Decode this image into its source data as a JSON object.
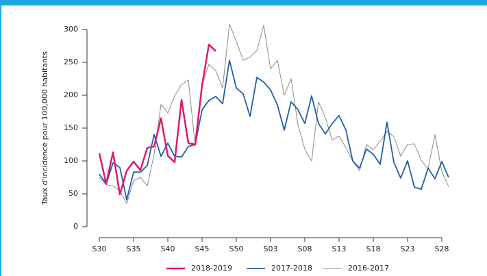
{
  "chart_data": {
    "type": "line",
    "y_label": "Taux d'incidence pour 100,000 habitants",
    "categories": [
      "S30",
      null,
      null,
      null,
      null,
      "S35",
      null,
      null,
      null,
      null,
      "S40",
      null,
      null,
      null,
      null,
      "S45",
      null,
      null,
      null,
      null,
      "S50",
      null,
      null,
      null,
      null,
      "S03",
      null,
      null,
      null,
      null,
      "S08",
      null,
      null,
      null,
      null,
      "S13",
      null,
      null,
      null,
      null,
      "S18",
      null,
      null,
      null,
      null,
      "S23",
      null,
      null,
      null,
      null,
      "S28",
      null
    ],
    "series": [
      {
        "name": "2018-2019",
        "color": "#e0186c",
        "width": 2.5,
        "values": [
          112,
          65,
          113,
          49,
          85,
          99,
          86,
          120,
          122,
          165,
          108,
          98,
          193,
          127,
          125,
          215,
          277,
          267,
          null,
          null,
          null,
          null,
          null,
          null,
          null,
          null,
          null,
          null,
          null,
          null,
          null,
          null,
          null,
          null,
          null,
          null,
          null,
          null,
          null,
          null,
          null,
          null,
          null,
          null,
          null,
          null,
          null,
          null,
          null,
          null,
          null,
          null
        ]
      },
      {
        "name": "2017-2018",
        "color": "#1f5fa8",
        "width": 1.8,
        "values": [
          80,
          65,
          97,
          90,
          41,
          83,
          83,
          93,
          140,
          107,
          127,
          107,
          106,
          122,
          125,
          178,
          192,
          198,
          187,
          253,
          211,
          202,
          168,
          227,
          220,
          208,
          185,
          147,
          190,
          178,
          157,
          199,
          157,
          141,
          157,
          169,
          147,
          100,
          89,
          118,
          110,
          95,
          159,
          98,
          74,
          100,
          60,
          57,
          89,
          73,
          99,
          75
        ]
      },
      {
        "name": "2016-2017",
        "color": "#8a8a8a",
        "width": 1,
        "values": [
          75,
          64,
          62,
          55,
          35,
          70,
          75,
          62,
          110,
          186,
          173,
          199,
          216,
          223,
          123,
          215,
          247,
          237,
          211,
          308,
          282,
          253,
          258,
          268,
          306,
          240,
          253,
          200,
          225,
          155,
          118,
          100,
          190,
          166,
          132,
          138,
          120,
          100,
          85,
          125,
          117,
          130,
          145,
          137,
          107,
          125,
          126,
          101,
          88,
          140,
          84,
          61
        ]
      }
    ],
    "ylim": [
      0,
      300
    ],
    "yticks": [
      0,
      50,
      100,
      150,
      200,
      250,
      300
    ]
  }
}
